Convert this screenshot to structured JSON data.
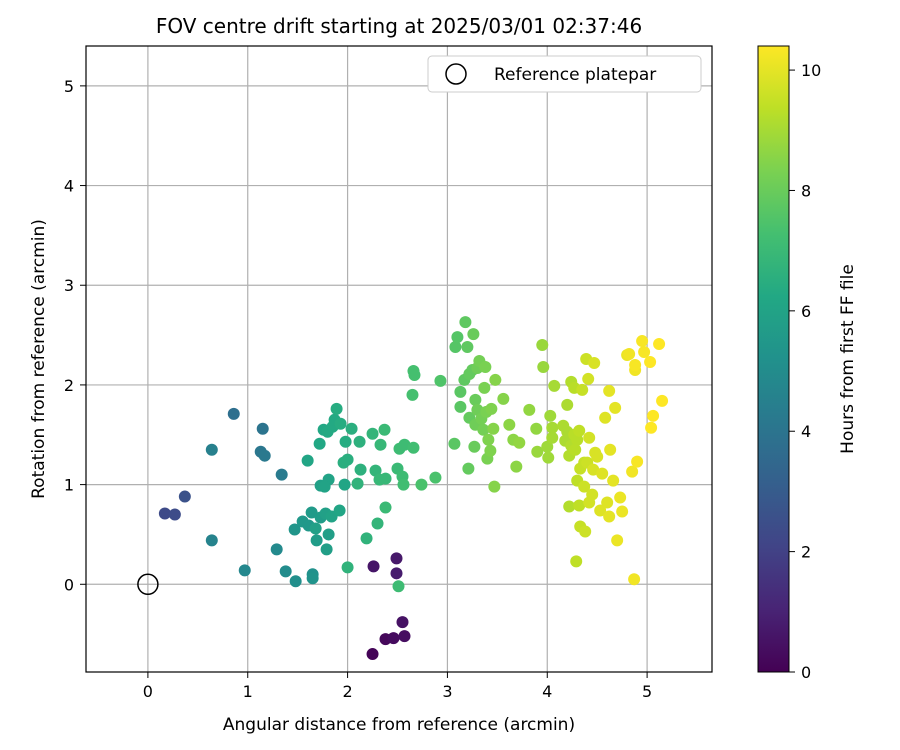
{
  "chart_data": {
    "type": "scatter",
    "title": "FOV centre drift starting at 2025/03/01 02:37:46",
    "xlabel": "Angular distance from reference (arcmin)",
    "ylabel": "Rotation from reference (arcmin)",
    "xlim": [
      -0.62,
      5.65
    ],
    "ylim": [
      -0.88,
      5.4
    ],
    "xticks": [
      0,
      1,
      2,
      3,
      4,
      5
    ],
    "yticks": [
      0,
      1,
      2,
      3,
      4,
      5
    ],
    "grid": true,
    "legend": {
      "placement": "top-right",
      "entries": [
        "Reference platepar"
      ]
    },
    "reference_point": {
      "x": 0,
      "y": 0,
      "label": "Reference platepar"
    },
    "colorbar": {
      "label": "Hours from first FF file",
      "min": 0,
      "max": 10.4,
      "ticks": [
        0,
        2,
        4,
        6,
        8,
        10
      ],
      "colormap": "viridis"
    },
    "series": [
      {
        "points": [
          [
            2.25,
            -0.7,
            0.1
          ],
          [
            2.38,
            -0.55,
            0.2
          ],
          [
            2.46,
            -0.54,
            0.3
          ],
          [
            2.57,
            -0.52,
            0.4
          ],
          [
            2.55,
            -0.38,
            0.5
          ],
          [
            2.26,
            0.18,
            0.6
          ],
          [
            2.49,
            0.26,
            0.7
          ],
          [
            2.49,
            0.11,
            0.8
          ],
          [
            0.17,
            0.71,
            2.3
          ],
          [
            0.27,
            0.7,
            2.4
          ],
          [
            0.37,
            0.88,
            2.6
          ],
          [
            0.86,
            1.71,
            3.8
          ],
          [
            1.15,
            1.56,
            4.0
          ],
          [
            1.13,
            1.33,
            4.1
          ],
          [
            1.17,
            1.29,
            4.2
          ],
          [
            1.34,
            1.1,
            4.3
          ],
          [
            0.64,
            1.35,
            4.5
          ],
          [
            0.64,
            0.44,
            4.6
          ],
          [
            0.97,
            0.14,
            4.8
          ],
          [
            1.29,
            0.35,
            4.9
          ],
          [
            1.38,
            0.13,
            5.0
          ],
          [
            1.48,
            0.03,
            5.1
          ],
          [
            1.65,
            0.1,
            5.2
          ],
          [
            1.65,
            0.06,
            5.3
          ],
          [
            1.47,
            0.55,
            5.4
          ],
          [
            1.55,
            0.63,
            5.5
          ],
          [
            1.61,
            0.59,
            5.5
          ],
          [
            1.64,
            0.72,
            5.6
          ],
          [
            1.69,
            0.44,
            5.7
          ],
          [
            1.73,
            0.67,
            5.7
          ],
          [
            1.79,
            0.35,
            5.8
          ],
          [
            1.81,
            0.5,
            5.8
          ],
          [
            1.68,
            0.56,
            5.9
          ],
          [
            1.78,
            0.71,
            5.9
          ],
          [
            1.73,
            0.99,
            5.9
          ],
          [
            1.81,
            1.05,
            6.0
          ],
          [
            1.77,
            0.98,
            6.0
          ],
          [
            1.84,
            0.68,
            6.0
          ],
          [
            1.92,
            0.74,
            6.1
          ],
          [
            1.97,
            1.0,
            6.1
          ],
          [
            1.6,
            1.24,
            6.1
          ],
          [
            1.72,
            1.41,
            6.2
          ],
          [
            1.76,
            1.55,
            6.2
          ],
          [
            1.8,
            1.53,
            6.3
          ],
          [
            1.85,
            1.58,
            6.3
          ],
          [
            1.87,
            1.65,
            6.3
          ],
          [
            1.89,
            1.76,
            6.4
          ],
          [
            1.93,
            1.61,
            6.4
          ],
          [
            1.98,
            1.43,
            6.4
          ],
          [
            1.96,
            1.22,
            6.5
          ],
          [
            2.0,
            1.25,
            6.5
          ],
          [
            2.04,
            1.56,
            6.5
          ],
          [
            2.12,
            1.43,
            6.6
          ],
          [
            2.13,
            1.15,
            6.6
          ],
          [
            2.1,
            1.01,
            6.7
          ],
          [
            2.0,
            0.17,
            6.7
          ],
          [
            2.19,
            0.46,
            6.7
          ],
          [
            2.25,
            1.51,
            6.8
          ],
          [
            2.28,
            1.14,
            6.8
          ],
          [
            2.3,
            0.61,
            6.8
          ],
          [
            2.32,
            1.05,
            6.9
          ],
          [
            2.38,
            1.06,
            6.9
          ],
          [
            2.33,
            1.4,
            6.9
          ],
          [
            2.37,
            1.55,
            7.0
          ],
          [
            2.38,
            0.77,
            7.0
          ],
          [
            2.5,
            1.16,
            7.0
          ],
          [
            2.51,
            -0.02,
            7.1
          ],
          [
            2.55,
            1.08,
            7.1
          ],
          [
            2.52,
            1.36,
            7.1
          ],
          [
            2.57,
            1.4,
            7.1
          ],
          [
            2.56,
            1.0,
            7.2
          ],
          [
            2.66,
            1.37,
            7.2
          ],
          [
            2.65,
            1.9,
            7.3
          ],
          [
            2.66,
            2.14,
            7.3
          ],
          [
            2.67,
            2.1,
            7.3
          ],
          [
            2.74,
            1.0,
            7.4
          ],
          [
            2.88,
            1.07,
            7.4
          ],
          [
            2.93,
            2.04,
            7.5
          ],
          [
            3.08,
            2.38,
            7.6
          ],
          [
            3.1,
            2.48,
            7.6
          ],
          [
            3.07,
            1.41,
            7.7
          ],
          [
            3.13,
            1.78,
            7.7
          ],
          [
            3.13,
            1.93,
            7.7
          ],
          [
            3.17,
            2.05,
            7.8
          ],
          [
            3.18,
            2.63,
            7.8
          ],
          [
            3.2,
            2.38,
            7.8
          ],
          [
            3.22,
            1.67,
            7.9
          ],
          [
            3.21,
            1.16,
            7.9
          ],
          [
            3.22,
            2.11,
            7.9
          ],
          [
            3.25,
            2.15,
            7.9
          ],
          [
            3.26,
            2.51,
            8.0
          ],
          [
            3.28,
            1.85,
            8.0
          ],
          [
            3.27,
            1.38,
            8.0
          ],
          [
            3.28,
            1.6,
            8.1
          ],
          [
            3.3,
            1.75,
            8.1
          ],
          [
            3.3,
            2.17,
            8.1
          ],
          [
            3.32,
            2.24,
            8.2
          ],
          [
            3.34,
            1.66,
            8.2
          ],
          [
            3.36,
            1.55,
            8.2
          ],
          [
            3.37,
            1.97,
            8.3
          ],
          [
            3.39,
            1.73,
            8.3
          ],
          [
            3.38,
            2.18,
            8.3
          ],
          [
            3.4,
            1.26,
            8.3
          ],
          [
            3.41,
            1.45,
            8.4
          ],
          [
            3.43,
            1.34,
            8.4
          ],
          [
            3.44,
            1.76,
            8.4
          ],
          [
            3.46,
            1.56,
            8.5
          ],
          [
            3.47,
            0.98,
            8.5
          ],
          [
            3.48,
            2.05,
            8.5
          ],
          [
            3.56,
            1.86,
            8.5
          ],
          [
            3.62,
            1.6,
            8.6
          ],
          [
            3.66,
            1.45,
            8.6
          ],
          [
            3.69,
            1.18,
            8.6
          ],
          [
            3.72,
            1.42,
            8.7
          ],
          [
            3.82,
            1.75,
            8.7
          ],
          [
            3.89,
            1.56,
            8.7
          ],
          [
            3.9,
            1.33,
            8.8
          ],
          [
            3.95,
            2.4,
            8.8
          ],
          [
            3.96,
            2.18,
            8.8
          ],
          [
            4.0,
            1.38,
            8.9
          ],
          [
            4.01,
            1.27,
            8.9
          ],
          [
            4.03,
            1.69,
            8.9
          ],
          [
            4.05,
            1.57,
            9.0
          ],
          [
            4.05,
            1.47,
            9.0
          ],
          [
            4.07,
            1.99,
            9.0
          ],
          [
            4.16,
            1.59,
            9.1
          ],
          [
            4.18,
            1.44,
            9.1
          ],
          [
            4.2,
            1.53,
            9.1
          ],
          [
            4.2,
            1.8,
            9.1
          ],
          [
            4.22,
            0.78,
            9.2
          ],
          [
            4.22,
            1.29,
            9.2
          ],
          [
            4.24,
            2.03,
            9.2
          ],
          [
            4.24,
            1.39,
            9.2
          ],
          [
            4.27,
            1.97,
            9.3
          ],
          [
            4.27,
            1.5,
            9.3
          ],
          [
            4.28,
            1.35,
            9.3
          ],
          [
            4.3,
            1.45,
            9.3
          ],
          [
            4.29,
            0.23,
            9.4
          ],
          [
            4.3,
            1.04,
            9.4
          ],
          [
            4.32,
            1.54,
            9.4
          ],
          [
            4.32,
            0.79,
            9.4
          ],
          [
            4.33,
            0.58,
            9.5
          ],
          [
            4.33,
            1.16,
            9.5
          ],
          [
            4.35,
            1.95,
            9.5
          ],
          [
            4.37,
            1.22,
            9.5
          ],
          [
            4.37,
            0.98,
            9.6
          ],
          [
            4.38,
            0.53,
            9.6
          ],
          [
            4.39,
            2.26,
            9.6
          ],
          [
            4.4,
            1.22,
            9.6
          ],
          [
            4.41,
            2.06,
            9.7
          ],
          [
            4.42,
            0.82,
            9.7
          ],
          [
            4.42,
            1.47,
            9.7
          ],
          [
            4.45,
            0.9,
            9.7
          ],
          [
            4.46,
            1.15,
            9.8
          ],
          [
            4.47,
            2.22,
            9.8
          ],
          [
            4.48,
            1.32,
            9.8
          ],
          [
            4.5,
            1.28,
            9.8
          ],
          [
            4.53,
            0.74,
            9.9
          ],
          [
            4.55,
            1.11,
            9.9
          ],
          [
            4.58,
            1.67,
            9.9
          ],
          [
            4.6,
            0.82,
            9.9
          ],
          [
            4.62,
            0.68,
            10.0
          ],
          [
            4.62,
            1.94,
            10.0
          ],
          [
            4.63,
            1.35,
            10.0
          ],
          [
            4.66,
            1.04,
            10.0
          ],
          [
            4.68,
            1.77,
            10.0
          ],
          [
            4.7,
            0.44,
            10.1
          ],
          [
            4.73,
            0.87,
            10.1
          ],
          [
            4.75,
            0.73,
            10.1
          ],
          [
            4.8,
            2.3,
            10.1
          ],
          [
            4.82,
            2.31,
            10.2
          ],
          [
            4.85,
            1.13,
            10.2
          ],
          [
            4.87,
            0.05,
            10.2
          ],
          [
            4.88,
            2.15,
            10.2
          ],
          [
            4.88,
            2.2,
            10.3
          ],
          [
            4.9,
            1.23,
            10.3
          ],
          [
            4.95,
            2.44,
            10.3
          ],
          [
            4.97,
            2.33,
            10.3
          ],
          [
            5.03,
            2.23,
            10.4
          ],
          [
            5.04,
            1.57,
            10.4
          ],
          [
            5.06,
            1.69,
            10.4
          ],
          [
            5.12,
            2.41,
            10.4
          ],
          [
            5.15,
            1.84,
            10.4
          ]
        ]
      }
    ]
  }
}
